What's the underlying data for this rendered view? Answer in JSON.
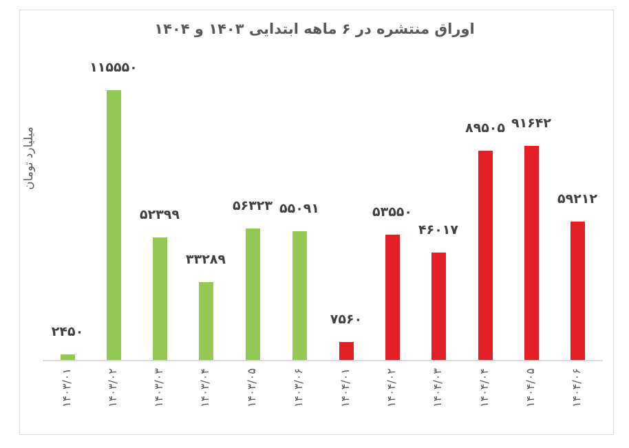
{
  "chart": {
    "title": "اوراق منتشره در ۶ ماهه ابتدایی ۱۴۰۳ و ۱۴۰۴",
    "ylabel": "میلیارد تومان"
  },
  "colors": {
    "series_1403": "#92c853",
    "series_1404": "#e21f26",
    "label_text": "#404040",
    "axis_text": "#595959",
    "gridline": "#d9d9d9"
  },
  "bars": [
    {
      "category": "۱۴۰۳/۰۱",
      "label": "۲۴۵۰",
      "value": 2450,
      "color": "#92c853"
    },
    {
      "category": "۱۴۰۳/۰۲",
      "label": "۱۱۵۵۵۰",
      "value": 115550,
      "color": "#92c853"
    },
    {
      "category": "۱۴۰۳/۰۳",
      "label": "۵۲۳۹۹",
      "value": 52399,
      "color": "#92c853"
    },
    {
      "category": "۱۴۰۳/۰۴",
      "label": "۳۳۲۸۹",
      "value": 33289,
      "color": "#92c853"
    },
    {
      "category": "۱۴۰۳/۰۵",
      "label": "۵۶۳۲۳",
      "value": 56323,
      "color": "#92c853"
    },
    {
      "category": "۱۴۰۳/۰۶",
      "label": "۵۵۰۹۱",
      "value": 55091,
      "color": "#92c853"
    },
    {
      "category": "۱۴۰۴/۰۱",
      "label": "۷۵۶۰",
      "value": 7560,
      "color": "#e21f26"
    },
    {
      "category": "۱۴۰۴/۰۲",
      "label": "۵۳۵۵۰",
      "value": 53550,
      "color": "#e21f26"
    },
    {
      "category": "۱۴۰۴/۰۳",
      "label": "۴۶۰۱۷",
      "value": 46017,
      "color": "#e21f26"
    },
    {
      "category": "۱۴۰۴/۰۴",
      "label": "۸۹۵۰۵",
      "value": 89505,
      "color": "#e21f26"
    },
    {
      "category": "۱۴۰۴/۰۵",
      "label": "۹۱۶۴۲",
      "value": 91642,
      "color": "#e21f26"
    },
    {
      "category": "۱۴۰۴/۰۶",
      "label": "۵۹۲۱۲",
      "value": 59212,
      "color": "#e21f26"
    }
  ],
  "chart_data": {
    "type": "bar",
    "title": "اوراق منتشره در ۶ ماهه ابتدایی ۱۴۰۳ و ۱۴۰۴",
    "xlabel": "",
    "ylabel": "میلیارد تومان",
    "categories": [
      "1403/01",
      "1403/02",
      "1403/03",
      "1403/04",
      "1403/05",
      "1403/06",
      "1404/01",
      "1404/02",
      "1404/03",
      "1404/04",
      "1404/05",
      "1404/06"
    ],
    "values": [
      2450,
      115550,
      52399,
      33289,
      56323,
      55091,
      7560,
      53550,
      46017,
      89505,
      91642,
      59212
    ],
    "series": [
      {
        "name": "1403",
        "color": "#92c853",
        "categories": [
          "1403/01",
          "1403/02",
          "1403/03",
          "1403/04",
          "1403/05",
          "1403/06"
        ],
        "values": [
          2450,
          115550,
          52399,
          33289,
          56323,
          55091
        ]
      },
      {
        "name": "1404",
        "color": "#e21f26",
        "categories": [
          "1404/01",
          "1404/02",
          "1404/03",
          "1404/04",
          "1404/05",
          "1404/06"
        ],
        "values": [
          7560,
          53550,
          46017,
          89505,
          91642,
          59212
        ]
      }
    ],
    "ylim": [
      0,
      115550
    ],
    "grid": false,
    "legend": "none",
    "data_labels": true
  }
}
